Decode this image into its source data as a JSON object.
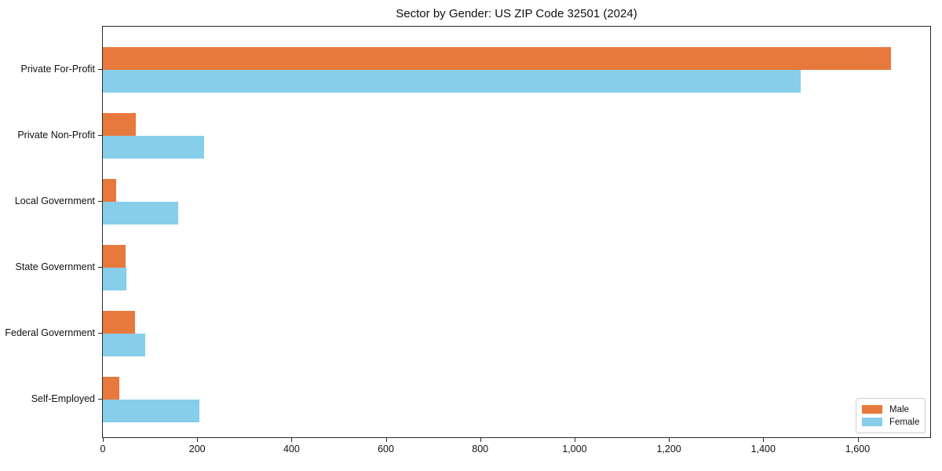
{
  "chart_data": {
    "type": "bar",
    "orientation": "horizontal",
    "title": "Sector by Gender: US ZIP Code 32501 (2024)",
    "categories": [
      "Private For-Profit",
      "Private Non-Profit",
      "Local Government",
      "State Government",
      "Federal Government",
      "Self-Employed"
    ],
    "series": [
      {
        "name": "Male",
        "color": "#e8793d",
        "values": [
          1670,
          70,
          28,
          48,
          68,
          35
        ]
      },
      {
        "name": "Female",
        "color": "#87ceeb",
        "values": [
          1480,
          215,
          160,
          50,
          90,
          205
        ]
      }
    ],
    "xlabel": "",
    "ylabel": "",
    "xlim": [
      0,
      1754
    ],
    "x_ticks": [
      0,
      200,
      400,
      600,
      800,
      1000,
      1200,
      1400,
      1600
    ],
    "x_tick_labels": [
      "0",
      "200",
      "400",
      "600",
      "800",
      "1,000",
      "1,200",
      "1,400",
      "1,600"
    ],
    "grid": false,
    "legend": {
      "position": "lower-right",
      "entries": [
        "Male",
        "Female"
      ]
    }
  }
}
